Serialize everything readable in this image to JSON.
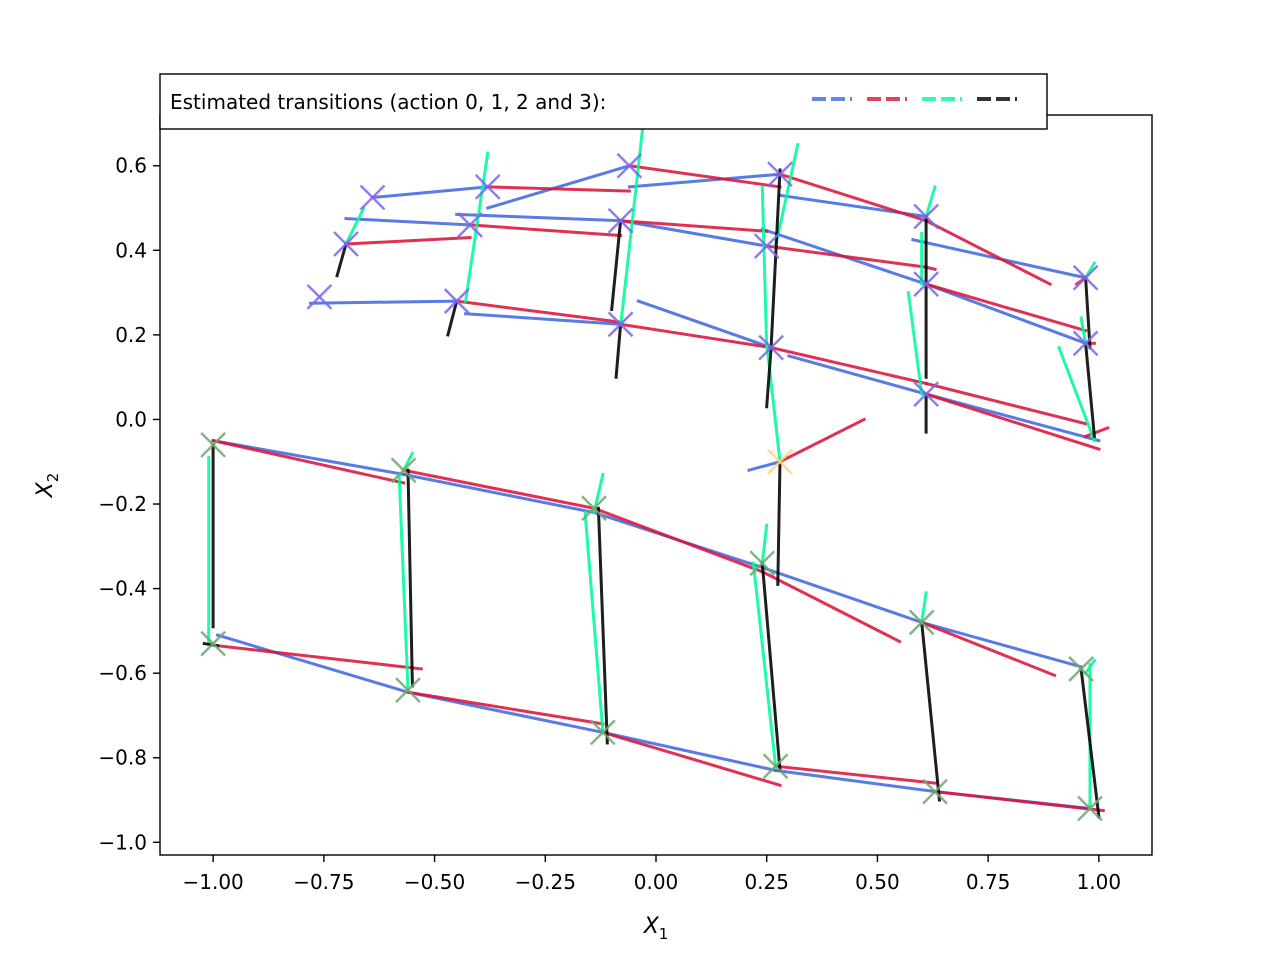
{
  "chart_data": {
    "type": "line",
    "title": "",
    "xlabel": "X",
    "xlabel_sub": "1",
    "ylabel": "X",
    "ylabel_sub": "2",
    "xlim": [
      -1.12,
      1.12
    ],
    "ylim": [
      -1.03,
      0.72
    ],
    "xticks": [
      -1.0,
      -0.75,
      -0.5,
      -0.25,
      0.0,
      0.25,
      0.5,
      0.75,
      1.0
    ],
    "xtick_labels": [
      "−1.00",
      "−0.75",
      "−0.50",
      "−0.25",
      "0.00",
      "0.25",
      "0.50",
      "0.75",
      "1.00"
    ],
    "yticks": [
      0.6,
      0.4,
      0.2,
      0.0,
      -0.2,
      -0.4,
      -0.6,
      -0.8,
      -1.0
    ],
    "ytick_labels": [
      "0.6",
      "0.4",
      "0.2",
      "0.0",
      "−0.2",
      "−0.4",
      "−0.6",
      "−0.8",
      "−1.0"
    ],
    "grid": false,
    "legend": {
      "label": "Estimated transitions (action 0, 1, 2 and 3):",
      "placement": "top-left",
      "colors": [
        "#4169e1",
        "#dc143c",
        "#00fa9a",
        "#000000"
      ]
    },
    "marker_groups": [
      {
        "color": "#7b68ee",
        "points": [
          [
            -0.64,
            0.525
          ],
          [
            -0.38,
            0.55
          ],
          [
            -0.06,
            0.6
          ],
          [
            0.28,
            0.58
          ],
          [
            -0.7,
            0.415
          ],
          [
            -0.42,
            0.46
          ],
          [
            -0.08,
            0.47
          ],
          [
            0.25,
            0.41
          ],
          [
            0.61,
            0.48
          ],
          [
            -0.76,
            0.29
          ],
          [
            -0.45,
            0.28
          ],
          [
            -0.08,
            0.225
          ],
          [
            0.26,
            0.17
          ],
          [
            0.61,
            0.32
          ],
          [
            0.97,
            0.335
          ],
          [
            0.97,
            0.18
          ],
          [
            0.61,
            0.06
          ]
        ]
      },
      {
        "color": "#ffd27f",
        "points": [
          [
            0.28,
            -0.1
          ]
        ]
      },
      {
        "color": "#6fa86f",
        "points": [
          [
            -1.0,
            -0.06
          ],
          [
            -0.57,
            -0.12
          ],
          [
            -0.14,
            -0.21
          ],
          [
            0.24,
            -0.34
          ],
          [
            0.6,
            -0.48
          ],
          [
            0.96,
            -0.59
          ],
          [
            -1.0,
            -0.53
          ],
          [
            -0.56,
            -0.64
          ],
          [
            -0.12,
            -0.74
          ],
          [
            0.27,
            -0.82
          ],
          [
            0.63,
            -0.88
          ],
          [
            0.98,
            -0.92
          ]
        ]
      }
    ],
    "series": [
      {
        "color": "#4169e1",
        "segments": [
          [
            [
              -0.64,
              0.525
            ],
            [
              -0.38,
              0.55
            ]
          ],
          [
            [
              -0.38,
              0.5
            ],
            [
              -0.06,
              0.6
            ]
          ],
          [
            [
              -0.06,
              0.55
            ],
            [
              0.28,
              0.58
            ]
          ],
          [
            [
              -0.7,
              0.475
            ],
            [
              -0.42,
              0.46
            ]
          ],
          [
            [
              -0.45,
              0.485
            ],
            [
              -0.08,
              0.47
            ]
          ],
          [
            [
              -0.08,
              0.47
            ],
            [
              0.25,
              0.41
            ]
          ],
          [
            [
              0.28,
              0.53
            ],
            [
              0.61,
              0.48
            ]
          ],
          [
            [
              0.24,
              0.45
            ],
            [
              0.61,
              0.32
            ]
          ],
          [
            [
              0.58,
              0.425
            ],
            [
              0.97,
              0.335
            ]
          ],
          [
            [
              -0.78,
              0.275
            ],
            [
              -0.45,
              0.28
            ]
          ],
          [
            [
              -0.43,
              0.25
            ],
            [
              -0.08,
              0.225
            ]
          ],
          [
            [
              -0.04,
              0.28
            ],
            [
              0.26,
              0.17
            ]
          ],
          [
            [
              0.61,
              0.32
            ],
            [
              0.97,
              0.18
            ]
          ],
          [
            [
              0.3,
              0.15
            ],
            [
              0.61,
              0.06
            ]
          ],
          [
            [
              0.61,
              0.06
            ],
            [
              1.0,
              -0.05
            ]
          ],
          [
            [
              0.21,
              -0.12
            ],
            [
              0.28,
              -0.1
            ]
          ],
          [
            [
              -1.0,
              -0.05
            ],
            [
              -0.57,
              -0.13
            ]
          ],
          [
            [
              -0.57,
              -0.13
            ],
            [
              -0.14,
              -0.22
            ]
          ],
          [
            [
              -0.14,
              -0.22
            ],
            [
              0.24,
              -0.35
            ]
          ],
          [
            [
              0.24,
              -0.35
            ],
            [
              0.6,
              -0.48
            ]
          ],
          [
            [
              0.6,
              -0.48
            ],
            [
              0.96,
              -0.585
            ]
          ],
          [
            [
              -0.99,
              -0.51
            ],
            [
              -0.56,
              -0.645
            ]
          ],
          [
            [
              -0.56,
              -0.645
            ],
            [
              -0.12,
              -0.74
            ]
          ],
          [
            [
              -0.12,
              -0.74
            ],
            [
              0.27,
              -0.83
            ]
          ],
          [
            [
              0.27,
              -0.83
            ],
            [
              0.63,
              -0.88
            ]
          ],
          [
            [
              0.63,
              -0.88
            ],
            [
              0.98,
              -0.92
            ]
          ]
        ]
      },
      {
        "color": "#dc143c",
        "segments": [
          [
            [
              -0.38,
              0.55
            ],
            [
              -0.06,
              0.54
            ]
          ],
          [
            [
              -0.06,
              0.6
            ],
            [
              0.28,
              0.55
            ]
          ],
          [
            [
              0.28,
              0.58
            ],
            [
              0.61,
              0.47
            ]
          ],
          [
            [
              0.61,
              0.47
            ],
            [
              0.89,
              0.32
            ]
          ],
          [
            [
              -0.7,
              0.415
            ],
            [
              -0.42,
              0.43
            ]
          ],
          [
            [
              -0.42,
              0.46
            ],
            [
              -0.08,
              0.435
            ]
          ],
          [
            [
              -0.08,
              0.47
            ],
            [
              0.25,
              0.445
            ]
          ],
          [
            [
              0.25,
              0.41
            ],
            [
              0.61,
              0.36
            ]
          ],
          [
            [
              0.61,
              0.36
            ],
            [
              0.63,
              0.355
            ]
          ],
          [
            [
              0.61,
              0.32
            ],
            [
              0.97,
              0.21
            ]
          ],
          [
            [
              0.97,
              0.335
            ],
            [
              0.95,
              0.32
            ]
          ],
          [
            [
              -0.45,
              0.28
            ],
            [
              -0.08,
              0.23
            ]
          ],
          [
            [
              -0.08,
              0.225
            ],
            [
              0.26,
              0.17
            ]
          ],
          [
            [
              0.26,
              0.17
            ],
            [
              0.61,
              0.085
            ]
          ],
          [
            [
              0.61,
              0.085
            ],
            [
              0.97,
              -0.01
            ]
          ],
          [
            [
              0.61,
              0.06
            ],
            [
              1.0,
              -0.07
            ]
          ],
          [
            [
              0.97,
              -0.04
            ],
            [
              1.02,
              -0.02
            ]
          ],
          [
            [
              0.97,
              0.18
            ],
            [
              0.99,
              0.18
            ]
          ],
          [
            [
              0.28,
              -0.1
            ],
            [
              0.47,
              0.0
            ]
          ],
          [
            [
              -1.0,
              -0.05
            ],
            [
              -0.57,
              -0.15
            ]
          ],
          [
            [
              -0.57,
              -0.12
            ],
            [
              -0.14,
              -0.21
            ]
          ],
          [
            [
              -0.14,
              -0.21
            ],
            [
              0.24,
              -0.36
            ]
          ],
          [
            [
              0.24,
              -0.36
            ],
            [
              0.55,
              -0.525
            ]
          ],
          [
            [
              0.6,
              -0.48
            ],
            [
              0.9,
              -0.605
            ]
          ],
          [
            [
              -0.99,
              -0.535
            ],
            [
              -0.53,
              -0.59
            ]
          ],
          [
            [
              -0.56,
              -0.645
            ],
            [
              -0.12,
              -0.72
            ]
          ],
          [
            [
              -0.12,
              -0.74
            ],
            [
              0.28,
              -0.865
            ]
          ],
          [
            [
              0.27,
              -0.82
            ],
            [
              0.63,
              -0.86
            ]
          ],
          [
            [
              0.63,
              -0.88
            ],
            [
              1.01,
              -0.925
            ]
          ]
        ]
      },
      {
        "color": "#00fa9a",
        "segments": [
          [
            [
              -0.7,
              0.415
            ],
            [
              -0.66,
              0.5
            ]
          ],
          [
            [
              -0.43,
              0.28
            ],
            [
              -0.38,
              0.63
            ]
          ],
          [
            [
              -0.08,
              0.22
            ],
            [
              -0.03,
              0.69
            ]
          ],
          [
            [
              0.27,
              0.41
            ],
            [
              0.32,
              0.65
            ]
          ],
          [
            [
              0.25,
              0.17
            ],
            [
              0.24,
              0.55
            ]
          ],
          [
            [
              0.61,
              0.48
            ],
            [
              0.63,
              0.55
            ]
          ],
          [
            [
              0.6,
              0.32
            ],
            [
              0.6,
              0.44
            ]
          ],
          [
            [
              0.6,
              0.06
            ],
            [
              0.57,
              0.3
            ]
          ],
          [
            [
              0.97,
              0.18
            ],
            [
              0.96,
              0.24
            ]
          ],
          [
            [
              0.97,
              0.335
            ],
            [
              0.99,
              0.37
            ]
          ],
          [
            [
              0.99,
              -0.05
            ],
            [
              0.91,
              0.17
            ]
          ],
          [
            [
              0.28,
              -0.1
            ],
            [
              0.25,
              0.18
            ]
          ],
          [
            [
              -1.01,
              -0.53
            ],
            [
              -1.01,
              -0.09
            ]
          ],
          [
            [
              -0.56,
              -0.64
            ],
            [
              -0.58,
              -0.13
            ]
          ],
          [
            [
              -0.12,
              -0.74
            ],
            [
              -0.16,
              -0.22
            ]
          ],
          [
            [
              0.27,
              -0.82
            ],
            [
              0.22,
              -0.34
            ]
          ],
          [
            [
              -0.57,
              -0.12
            ],
            [
              -0.55,
              -0.08
            ]
          ],
          [
            [
              -0.14,
              -0.22
            ],
            [
              -0.12,
              -0.13
            ]
          ],
          [
            [
              0.24,
              -0.34
            ],
            [
              0.25,
              -0.25
            ]
          ],
          [
            [
              0.6,
              -0.48
            ],
            [
              0.61,
              -0.41
            ]
          ],
          [
            [
              0.98,
              -0.92
            ],
            [
              0.98,
              -0.58
            ]
          ],
          [
            [
              0.97,
              -0.6
            ],
            [
              0.99,
              -0.57
            ]
          ]
        ]
      },
      {
        "color": "#000000",
        "segments": [
          [
            [
              -0.7,
              0.415
            ],
            [
              -0.72,
              0.34
            ]
          ],
          [
            [
              -0.45,
              0.28
            ],
            [
              -0.47,
              0.2
            ]
          ],
          [
            [
              -0.08,
              0.47
            ],
            [
              -0.1,
              0.26
            ]
          ],
          [
            [
              -0.08,
              0.225
            ],
            [
              -0.09,
              0.1
            ]
          ],
          [
            [
              0.28,
              0.59
            ],
            [
              0.26,
              0.17
            ]
          ],
          [
            [
              0.26,
              0.17
            ],
            [
              0.25,
              0.03
            ]
          ],
          [
            [
              0.61,
              0.48
            ],
            [
              0.61,
              0.1
            ]
          ],
          [
            [
              0.61,
              0.06
            ],
            [
              0.61,
              -0.03
            ]
          ],
          [
            [
              0.97,
              0.335
            ],
            [
              0.98,
              0.17
            ]
          ],
          [
            [
              0.97,
              0.18
            ],
            [
              0.99,
              -0.04
            ]
          ],
          [
            [
              0.28,
              -0.1
            ],
            [
              0.275,
              -0.39
            ]
          ],
          [
            [
              -1.0,
              -0.06
            ],
            [
              -1.0,
              -0.49
            ]
          ],
          [
            [
              -1.02,
              -0.53
            ],
            [
              -0.99,
              -0.535
            ]
          ],
          [
            [
              -0.56,
              -0.12
            ],
            [
              -0.55,
              -0.63
            ]
          ],
          [
            [
              -0.13,
              -0.21
            ],
            [
              -0.11,
              -0.765
            ]
          ],
          [
            [
              0.24,
              -0.34
            ],
            [
              0.28,
              -0.83
            ]
          ],
          [
            [
              0.6,
              -0.48
            ],
            [
              0.64,
              -0.9
            ]
          ],
          [
            [
              0.96,
              -0.59
            ],
            [
              1.0,
              -0.94
            ]
          ]
        ]
      }
    ]
  }
}
